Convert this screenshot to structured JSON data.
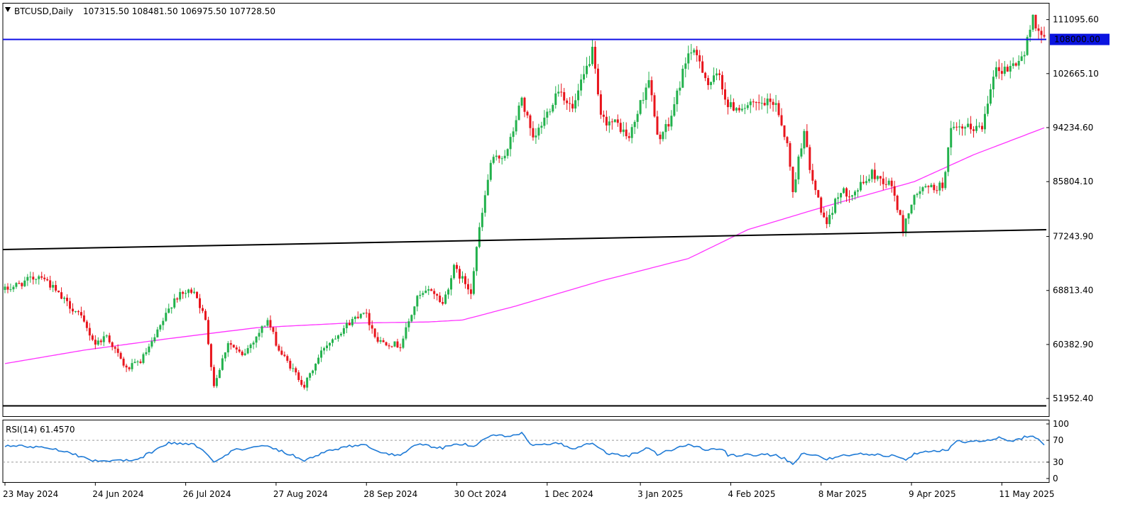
{
  "header": {
    "symbol_label": "BTCUSD,Daily",
    "ohlc_label": "107315.50 108481.50 106975.50 107728.50"
  },
  "rsi_panel": {
    "label": "RSI(14) 61.4570"
  },
  "colors": {
    "bull_candle": "#22b14c",
    "bear_candle": "#e8141c",
    "ma_line": "#ff33ff",
    "rsi_line": "#1e7ad6",
    "resistance_line": "#1010e6",
    "trend_line": "#000000",
    "price_tag_bg": "#0a14e0"
  },
  "chart_data": {
    "type": "candlestick",
    "symbol": "BTCUSD",
    "timeframe": "Daily",
    "price_axis": {
      "min": 49200,
      "max": 113600,
      "tick_labels": [
        "111095.60",
        "102665.10",
        "94234.60",
        "85804.10",
        "77243.90",
        "68813.40",
        "60382.90",
        "51952.40"
      ],
      "tick_values": [
        111095.6,
        102665.1,
        94234.6,
        85804.1,
        77243.9,
        68813.4,
        60382.9,
        51952.4
      ]
    },
    "date_axis": {
      "start": "2024-05-23",
      "end": "2025-05-26",
      "tick_labels": [
        "23 May 2024",
        "24 Jun 2024",
        "26 Jul 2024",
        "27 Aug 2024",
        "28 Sep 2024",
        "30 Oct 2024",
        "1 Dec 2024",
        "3 Jan 2025",
        "4 Feb 2025",
        "8 Mar 2025",
        "9 Apr 2025",
        "11 May 2025"
      ]
    },
    "horizontal_levels": [
      {
        "price": 108000.0,
        "label": "108000.00",
        "color": "#1010e6"
      },
      {
        "price": 50800.0,
        "color": "#000000"
      }
    ],
    "trend_lines": [
      {
        "from": [
          "2024-05-23",
          75200
        ],
        "to": [
          "2025-05-26",
          78300
        ],
        "color": "#000000"
      }
    ],
    "price_path": [
      [
        "2024-05-23",
        68900
      ],
      [
        "2024-06-05",
        71300
      ],
      [
        "2024-06-12",
        67600
      ],
      [
        "2024-06-18",
        65200
      ],
      [
        "2024-06-24",
        60500
      ],
      [
        "2024-06-28",
        61800
      ],
      [
        "2024-07-05",
        56500
      ],
      [
        "2024-07-10",
        57800
      ],
      [
        "2024-07-14",
        60500
      ],
      [
        "2024-07-22",
        67600
      ],
      [
        "2024-07-29",
        69000
      ],
      [
        "2024-08-02",
        64000
      ],
      [
        "2024-08-05",
        54000
      ],
      [
        "2024-08-10",
        60800
      ],
      [
        "2024-08-15",
        58500
      ],
      [
        "2024-08-24",
        64200
      ],
      [
        "2024-08-28",
        59500
      ],
      [
        "2024-09-06",
        53900
      ],
      [
        "2024-09-13",
        60000
      ],
      [
        "2024-09-20",
        63000
      ],
      [
        "2024-09-27",
        65800
      ],
      [
        "2024-10-02",
        61000
      ],
      [
        "2024-10-10",
        60200
      ],
      [
        "2024-10-16",
        67600
      ],
      [
        "2024-10-21",
        69000
      ],
      [
        "2024-10-25",
        66700
      ],
      [
        "2024-10-29",
        72300
      ],
      [
        "2024-11-04",
        68800
      ],
      [
        "2024-11-06",
        75600
      ],
      [
        "2024-11-11",
        88700
      ],
      [
        "2024-11-17",
        90500
      ],
      [
        "2024-11-22",
        98900
      ],
      [
        "2024-11-26",
        92000
      ],
      [
        "2024-12-01",
        96500
      ],
      [
        "2024-12-05",
        100500
      ],
      [
        "2024-12-10",
        97000
      ],
      [
        "2024-12-17",
        106100
      ],
      [
        "2024-12-20",
        95600
      ],
      [
        "2024-12-26",
        94700
      ],
      [
        "2024-12-30",
        92500
      ],
      [
        "2025-01-06",
        102000
      ],
      [
        "2025-01-09",
        92600
      ],
      [
        "2025-01-13",
        94500
      ],
      [
        "2025-01-20",
        106200
      ],
      [
        "2025-01-24",
        104800
      ],
      [
        "2025-01-27",
        101000
      ],
      [
        "2025-01-31",
        102400
      ],
      [
        "2025-02-03",
        97500
      ],
      [
        "2025-02-10",
        97500
      ],
      [
        "2025-02-20",
        98200
      ],
      [
        "2025-02-24",
        91500
      ],
      [
        "2025-02-26",
        84200
      ],
      [
        "2025-03-02",
        94200
      ],
      [
        "2025-03-04",
        87300
      ],
      [
        "2025-03-10",
        78600
      ],
      [
        "2025-03-14",
        84000
      ],
      [
        "2025-03-20",
        84200
      ],
      [
        "2025-03-26",
        87000
      ],
      [
        "2025-04-02",
        85200
      ],
      [
        "2025-04-06",
        78300
      ],
      [
        "2025-04-09",
        82500
      ],
      [
        "2025-04-12",
        84500
      ],
      [
        "2025-04-20",
        85100
      ],
      [
        "2025-04-23",
        93600
      ],
      [
        "2025-04-30",
        94200
      ],
      [
        "2025-05-04",
        94300
      ],
      [
        "2025-05-08",
        103000
      ],
      [
        "2025-05-14",
        103600
      ],
      [
        "2025-05-19",
        105700
      ],
      [
        "2025-05-22",
        111600
      ],
      [
        "2025-05-26",
        107700
      ]
    ],
    "moving_average": {
      "color": "#ff33ff",
      "path": [
        [
          "2024-05-23",
          57400
        ],
        [
          "2024-06-20",
          59500
        ],
        [
          "2024-07-20",
          61300
        ],
        [
          "2024-08-20",
          63000
        ],
        [
          "2024-09-20",
          63700
        ],
        [
          "2024-10-20",
          63900
        ],
        [
          "2024-11-01",
          64200
        ],
        [
          "2024-11-20",
          66400
        ],
        [
          "2024-12-20",
          70300
        ],
        [
          "2025-01-20",
          73800
        ],
        [
          "2025-02-10",
          78300
        ],
        [
          "2025-03-10",
          82000
        ],
        [
          "2025-04-10",
          85800
        ],
        [
          "2025-05-01",
          90000
        ],
        [
          "2025-05-26",
          94200
        ]
      ]
    },
    "rsi": {
      "period": 14,
      "value": 61.457,
      "levels": [
        30,
        70
      ],
      "scale": [
        0,
        100
      ],
      "scale_labels": [
        "100",
        "70",
        "30",
        "0"
      ],
      "path": [
        [
          "2024-05-23",
          60
        ],
        [
          "2024-06-05",
          58
        ],
        [
          "2024-06-12",
          52
        ],
        [
          "2024-06-24",
          32
        ],
        [
          "2024-07-05",
          33
        ],
        [
          "2024-07-10",
          38
        ],
        [
          "2024-07-20",
          65
        ],
        [
          "2024-07-29",
          63
        ],
        [
          "2024-08-05",
          32
        ],
        [
          "2024-08-12",
          52
        ],
        [
          "2024-08-24",
          60
        ],
        [
          "2024-09-06",
          34
        ],
        [
          "2024-09-15",
          52
        ],
        [
          "2024-09-27",
          64
        ],
        [
          "2024-10-03",
          45
        ],
        [
          "2024-10-10",
          44
        ],
        [
          "2024-10-16",
          63
        ],
        [
          "2024-10-25",
          55
        ],
        [
          "2024-10-29",
          65
        ],
        [
          "2024-11-05",
          60
        ],
        [
          "2024-11-12",
          80
        ],
        [
          "2024-11-17",
          76
        ],
        [
          "2024-11-22",
          82
        ],
        [
          "2024-11-26",
          60
        ],
        [
          "2024-12-05",
          64
        ],
        [
          "2024-12-10",
          55
        ],
        [
          "2024-12-17",
          67
        ],
        [
          "2024-12-22",
          46
        ],
        [
          "2024-12-30",
          42
        ],
        [
          "2025-01-06",
          57
        ],
        [
          "2025-01-09",
          45
        ],
        [
          "2025-01-20",
          62
        ],
        [
          "2025-01-27",
          52
        ],
        [
          "2025-02-01",
          55
        ],
        [
          "2025-02-03",
          42
        ],
        [
          "2025-02-20",
          44
        ],
        [
          "2025-02-26",
          28
        ],
        [
          "2025-03-02",
          48
        ],
        [
          "2025-03-10",
          36
        ],
        [
          "2025-03-20",
          45
        ],
        [
          "2025-04-02",
          42
        ],
        [
          "2025-04-07",
          36
        ],
        [
          "2025-04-12",
          50
        ],
        [
          "2025-04-22",
          52
        ],
        [
          "2025-04-25",
          68
        ],
        [
          "2025-05-05",
          68
        ],
        [
          "2025-05-10",
          74
        ],
        [
          "2025-05-14",
          68
        ],
        [
          "2025-05-22",
          80
        ],
        [
          "2025-05-26",
          61.46
        ]
      ]
    }
  }
}
